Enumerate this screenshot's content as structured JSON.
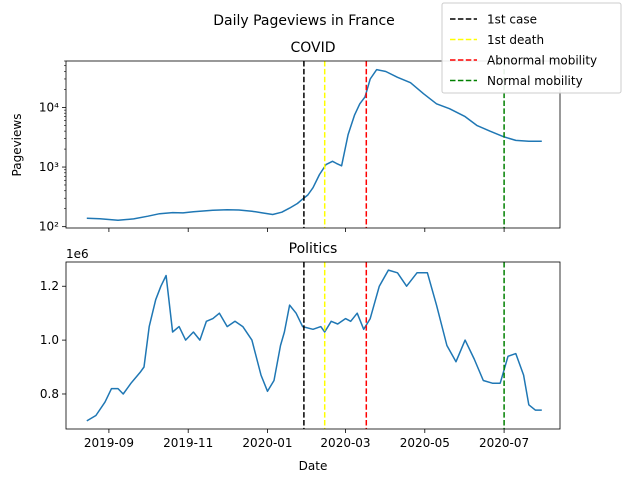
{
  "figure_title": "Daily Pageviews in France",
  "x_axis_label": "Date",
  "legend": [
    {
      "label": "1st case",
      "color": "#000000"
    },
    {
      "label": "1st death",
      "color": "#ffff00"
    },
    {
      "label": "Abnormal mobility",
      "color": "#ff0000"
    },
    {
      "label": "Normal mobility",
      "color": "#008000"
    }
  ],
  "chart_data": [
    {
      "type": "line",
      "title": "COVID",
      "xlabel": "",
      "ylabel": "Pageviews",
      "yscale": "log",
      "ylim": [
        95,
        60000
      ],
      "xlim": [
        "2019-07-30",
        "2020-08-13"
      ],
      "x_ticks": [
        "2019-09",
        "2019-11",
        "2020-01",
        "2020-03",
        "2020-05",
        "2020-07"
      ],
      "x_tick_labels_visible": false,
      "y_ticks": [
        {
          "value": 100,
          "label": "10²"
        },
        {
          "value": 1000,
          "label": "10³"
        },
        {
          "value": 10000,
          "label": "10⁴"
        }
      ],
      "series": [
        {
          "color": "#1f77b4",
          "x": [
            "2019-08-15",
            "2019-08-25",
            "2019-09-01",
            "2019-09-08",
            "2019-09-20",
            "2019-10-01",
            "2019-10-10",
            "2019-10-20",
            "2019-10-28",
            "2019-11-05",
            "2019-11-20",
            "2019-12-01",
            "2019-12-10",
            "2019-12-20",
            "2019-12-28",
            "2020-01-05",
            "2020-01-12",
            "2020-01-18",
            "2020-01-24",
            "2020-01-28",
            "2020-02-01",
            "2020-02-05",
            "2020-02-10",
            "2020-02-15",
            "2020-02-20",
            "2020-02-23",
            "2020-02-27",
            "2020-03-03",
            "2020-03-08",
            "2020-03-12",
            "2020-03-16",
            "2020-03-20",
            "2020-03-25",
            "2020-04-01",
            "2020-04-10",
            "2020-04-20",
            "2020-04-30",
            "2020-05-10",
            "2020-05-20",
            "2020-06-01",
            "2020-06-10",
            "2020-06-20",
            "2020-07-01",
            "2020-07-10",
            "2020-07-20",
            "2020-07-30"
          ],
          "y": [
            138,
            136,
            132,
            128,
            135,
            150,
            165,
            172,
            170,
            178,
            188,
            192,
            190,
            182,
            170,
            160,
            175,
            205,
            245,
            290,
            340,
            450,
            750,
            1100,
            1250,
            1150,
            1050,
            3500,
            7500,
            11500,
            15000,
            30000,
            43000,
            40000,
            32000,
            26000,
            17000,
            11500,
            9500,
            7000,
            5000,
            4000,
            3200,
            2800,
            2700,
            2700
          ]
        }
      ],
      "vlines": [
        {
          "x": "2020-01-29",
          "color": "#000000"
        },
        {
          "x": "2020-02-14",
          "color": "#ffff00"
        },
        {
          "x": "2020-03-17",
          "color": "#ff0000"
        },
        {
          "x": "2020-07-01",
          "color": "#008000"
        }
      ]
    },
    {
      "type": "line",
      "title": "Politics",
      "xlabel": "Date",
      "ylabel": "",
      "offset_text": "1e6",
      "ylim": [
        0.67,
        1.29
      ],
      "xlim": [
        "2019-07-30",
        "2020-08-13"
      ],
      "x_ticks": [
        "2019-09",
        "2019-11",
        "2020-01",
        "2020-03",
        "2020-05",
        "2020-07"
      ],
      "y_ticks": [
        {
          "value": 0.8,
          "label": "0.8"
        },
        {
          "value": 1.0,
          "label": "1.0"
        },
        {
          "value": 1.2,
          "label": "1.2"
        }
      ],
      "series": [
        {
          "color": "#1f77b4",
          "x": [
            "2019-08-15",
            "2019-08-22",
            "2019-08-29",
            "2019-09-03",
            "2019-09-08",
            "2019-09-12",
            "2019-09-18",
            "2019-09-25",
            "2019-09-28",
            "2019-10-02",
            "2019-10-07",
            "2019-10-11",
            "2019-10-15",
            "2019-10-20",
            "2019-10-25",
            "2019-10-30",
            "2019-11-05",
            "2019-11-10",
            "2019-11-15",
            "2019-11-20",
            "2019-11-25",
            "2019-12-01",
            "2019-12-07",
            "2019-12-13",
            "2019-12-20",
            "2019-12-27",
            "2020-01-01",
            "2020-01-06",
            "2020-01-11",
            "2020-01-14",
            "2020-01-18",
            "2020-01-23",
            "2020-01-28",
            "2020-02-05",
            "2020-02-11",
            "2020-02-14",
            "2020-02-19",
            "2020-02-24",
            "2020-03-01",
            "2020-03-05",
            "2020-03-10",
            "2020-03-15",
            "2020-03-20",
            "2020-03-27",
            "2020-04-03",
            "2020-04-10",
            "2020-04-17",
            "2020-04-25",
            "2020-05-03",
            "2020-05-10",
            "2020-05-18",
            "2020-05-25",
            "2020-06-01",
            "2020-06-08",
            "2020-06-15",
            "2020-06-22",
            "2020-06-28",
            "2020-07-04",
            "2020-07-10",
            "2020-07-16",
            "2020-07-20",
            "2020-07-25",
            "2020-07-30"
          ],
          "y": [
            0.7,
            0.72,
            0.77,
            0.82,
            0.82,
            0.8,
            0.84,
            0.88,
            0.9,
            1.05,
            1.15,
            1.2,
            1.24,
            1.03,
            1.05,
            1.0,
            1.03,
            1.0,
            1.07,
            1.08,
            1.1,
            1.05,
            1.07,
            1.05,
            1.0,
            0.87,
            0.81,
            0.85,
            0.98,
            1.03,
            1.13,
            1.1,
            1.05,
            1.04,
            1.05,
            1.03,
            1.07,
            1.06,
            1.08,
            1.07,
            1.1,
            1.04,
            1.08,
            1.2,
            1.26,
            1.25,
            1.2,
            1.25,
            1.25,
            1.13,
            0.98,
            0.92,
            1.0,
            0.93,
            0.85,
            0.84,
            0.84,
            0.94,
            0.95,
            0.87,
            0.76,
            0.74,
            0.74
          ]
        }
      ],
      "vlines": [
        {
          "x": "2020-01-29",
          "color": "#000000"
        },
        {
          "x": "2020-02-14",
          "color": "#ffff00"
        },
        {
          "x": "2020-03-17",
          "color": "#ff0000"
        },
        {
          "x": "2020-07-01",
          "color": "#008000"
        }
      ]
    }
  ]
}
